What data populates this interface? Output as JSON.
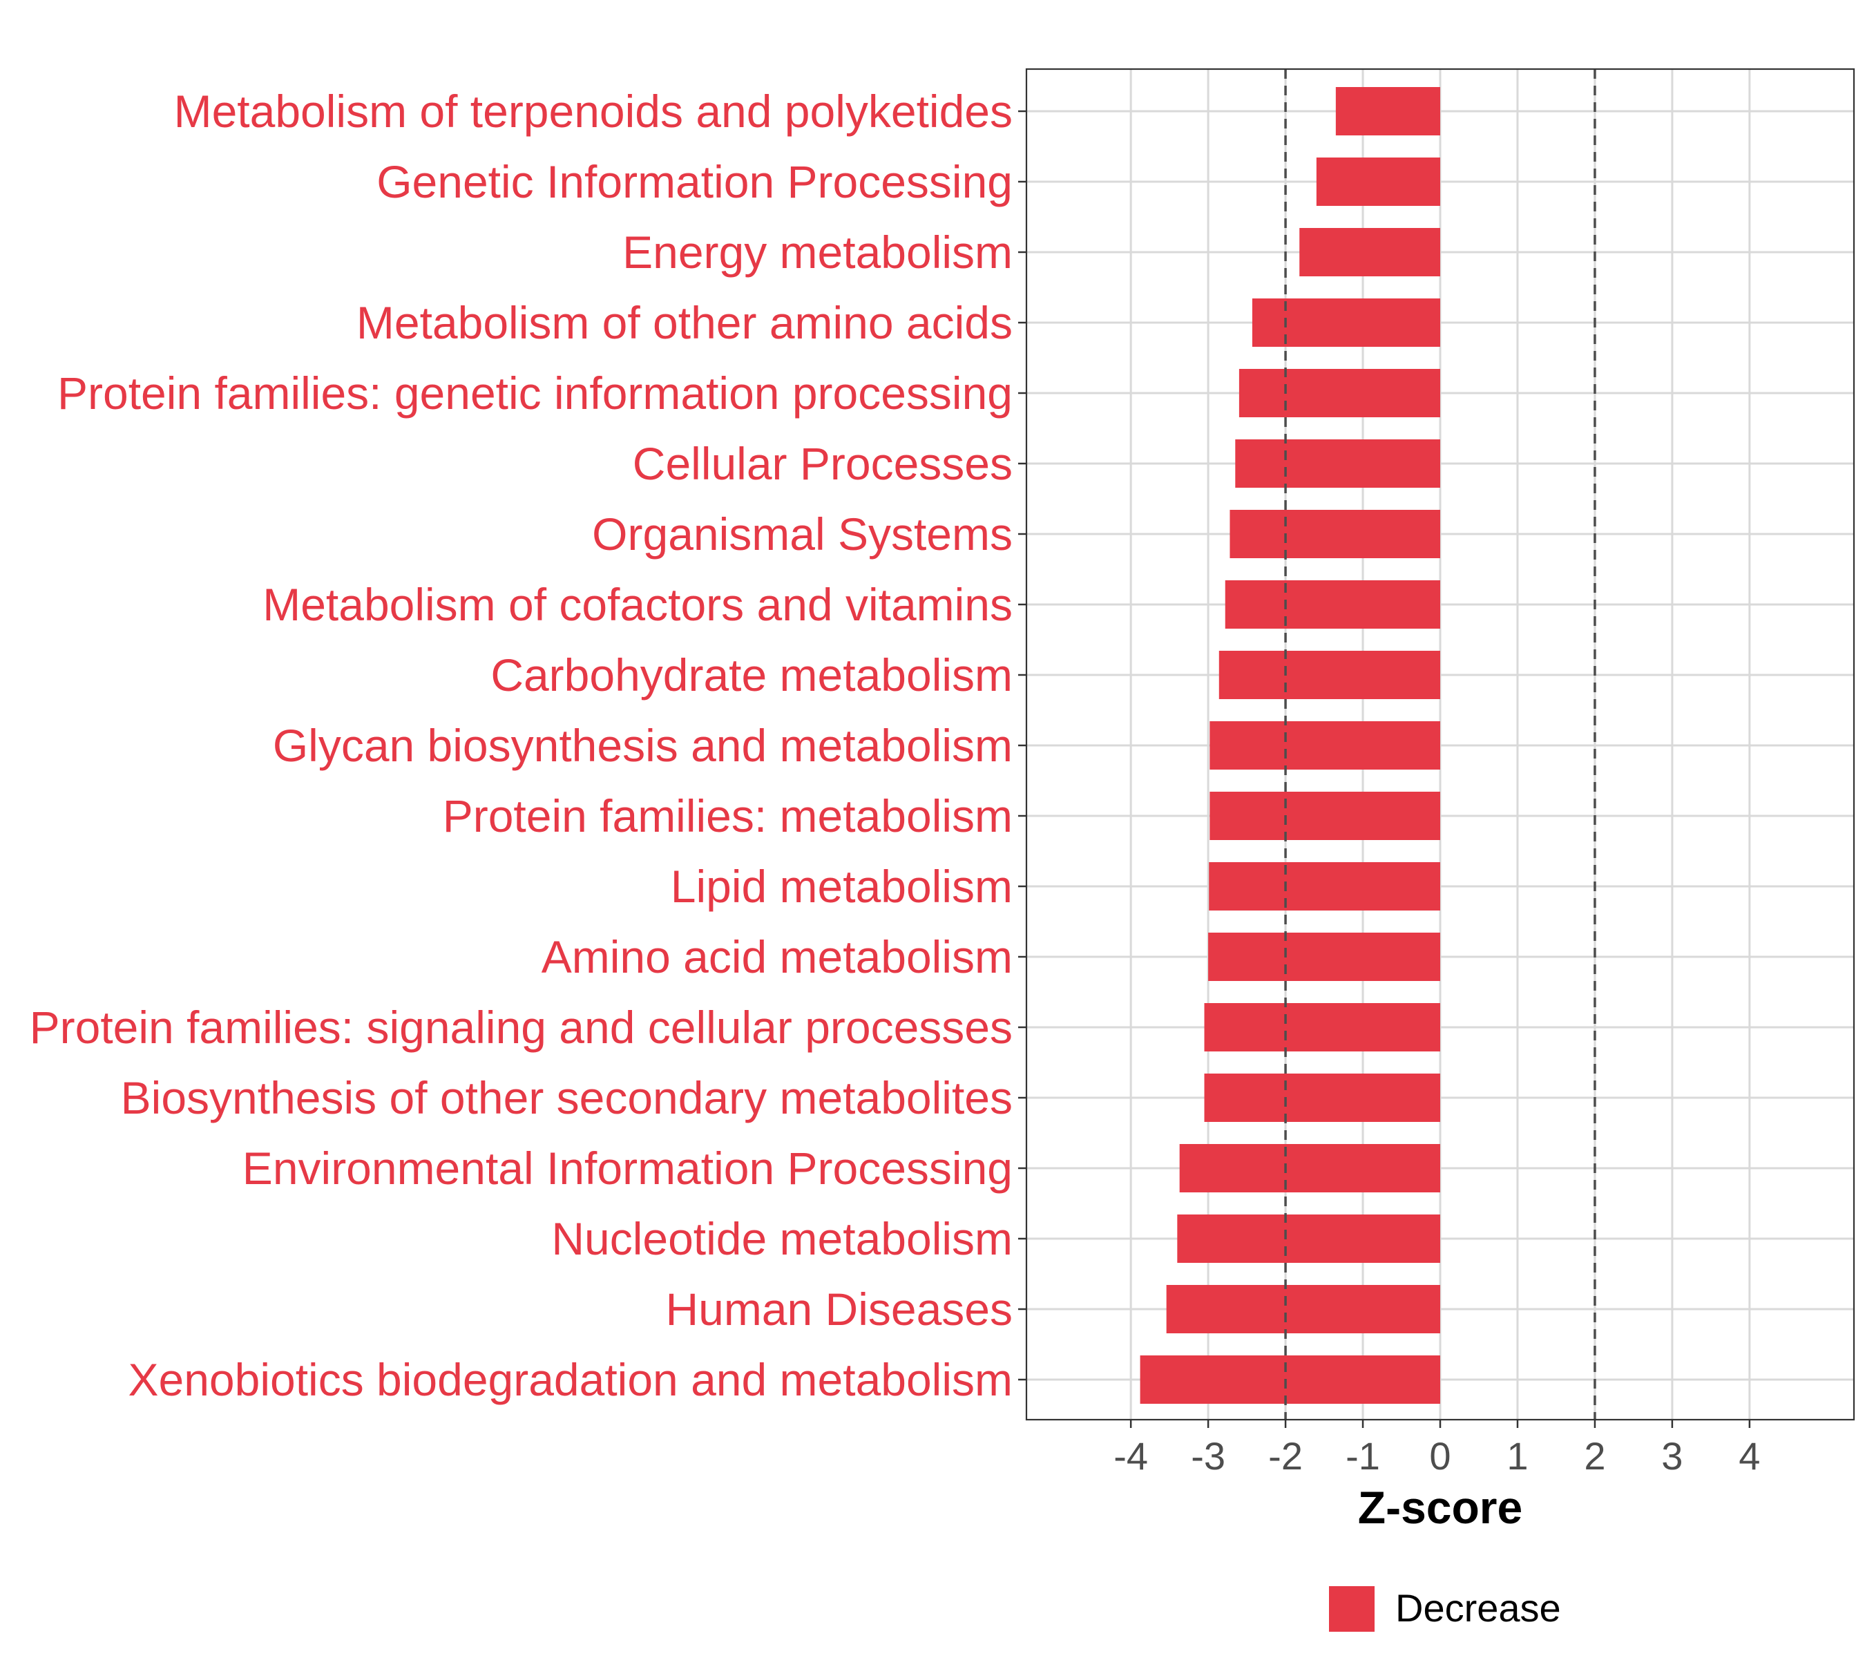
{
  "chart_data": {
    "type": "bar",
    "orientation": "horizontal",
    "categories": [
      "Metabolism of terpenoids and polyketides",
      "Genetic Information Processing",
      "Energy metabolism",
      "Metabolism of other amino acids",
      "Protein families: genetic information processing",
      "Cellular Processes",
      "Organismal Systems",
      "Metabolism of cofactors and vitamins",
      "Carbohydrate metabolism",
      "Glycan biosynthesis and metabolism",
      "Protein families: metabolism",
      "Lipid metabolism",
      "Amino acid metabolism",
      "Protein families: signaling and cellular processes",
      "Biosynthesis of other secondary metabolites",
      "Environmental Information Processing",
      "Nucleotide metabolism",
      "Human Diseases",
      "Xenobiotics biodegradation and metabolism"
    ],
    "series": [
      {
        "name": "Decrease",
        "color": "#e63946",
        "values": [
          -1.35,
          -1.6,
          -1.82,
          -2.43,
          -2.6,
          -2.65,
          -2.72,
          -2.78,
          -2.86,
          -2.98,
          -2.98,
          -2.99,
          -3.0,
          -3.05,
          -3.05,
          -3.37,
          -3.4,
          -3.54,
          -3.88
        ]
      }
    ],
    "xlabel": "Z-score",
    "ylabel": "",
    "xlim": [
      -5.35,
      5.35
    ],
    "xticks": [
      "-4",
      "-3",
      "-2",
      "-1",
      "0",
      "1",
      "2",
      "3",
      "4"
    ],
    "xtick_values": [
      -4,
      -3,
      -2,
      -1,
      0,
      1,
      2,
      3,
      4
    ],
    "reference_lines": [
      -2,
      2
    ],
    "grid": true,
    "legend": {
      "position": "bottom",
      "entries": [
        "Decrease"
      ]
    },
    "label_color": "#e63946"
  }
}
